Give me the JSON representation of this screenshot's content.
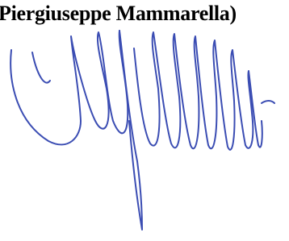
{
  "caption": "Piergiuseppe Mammarella)"
}
